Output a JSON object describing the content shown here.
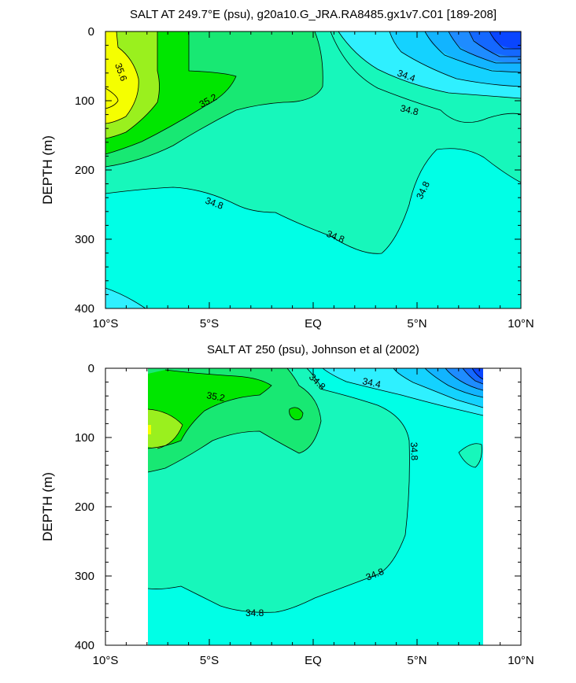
{
  "chart_data": [
    {
      "type": "contour",
      "title": "SALT AT 249.7°E (psu), g20a10.G_JRA.RA8485.gx1v7.C01 [189-208]",
      "ylabel": "DEPTH (m)",
      "xlabel": "",
      "xlim": [
        -10,
        10
      ],
      "ylim": [
        400,
        0
      ],
      "x_ticks": [
        "10°S",
        "5°S",
        "EQ",
        "5°N",
        "10°N"
      ],
      "y_ticks": [
        "0",
        "100",
        "200",
        "300",
        "400"
      ],
      "data_extent_lat": [
        -10,
        10
      ],
      "contour_interval": 0.2,
      "contour_labels": [
        "35.6",
        "35.2",
        "34.4",
        "34.8",
        "34.8",
        "34.8",
        "34.8"
      ],
      "levels_colors": {
        "33.4": "#0a46ff",
        "33.6": "#1468ff",
        "33.8": "#1e8cff",
        "34.0": "#12b4ff",
        "34.2": "#14d2ff",
        "34.4": "#2ff0ff",
        "34.6": "#00ffe6",
        "34.8": "#17f7bb",
        "35.0": "#18e873",
        "35.2": "#00e600",
        "35.4": "#9af01e",
        "35.6": "#f5ff00"
      }
    },
    {
      "type": "contour",
      "title": "SALT AT 250 (psu), Johnson et al (2002)",
      "ylabel": "DEPTH (m)",
      "xlabel": "",
      "xlim": [
        -10,
        10
      ],
      "ylim": [
        400,
        0
      ],
      "x_ticks": [
        "10°S",
        "5°S",
        "EQ",
        "5°N",
        "10°N"
      ],
      "y_ticks": [
        "0",
        "100",
        "200",
        "300",
        "400"
      ],
      "data_extent_lat": [
        -8,
        8.2
      ],
      "contour_interval": 0.2,
      "contour_labels": [
        "34.8",
        "34.4",
        "35.2",
        "34.8",
        "34.8",
        "34.8"
      ]
    }
  ]
}
